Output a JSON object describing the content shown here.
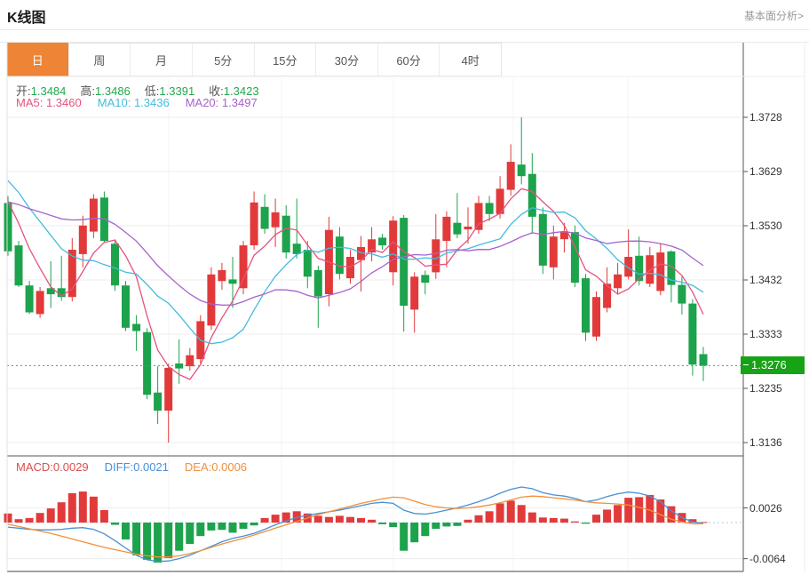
{
  "header": {
    "title": "K线图",
    "link": "基本面分析>"
  },
  "tabs": {
    "items": [
      "日",
      "周",
      "月",
      "5分",
      "15分",
      "30分",
      "60分",
      "4时"
    ],
    "active": "日"
  },
  "legend": {
    "ohlc": [
      {
        "label": "开:",
        "value": "1.3484"
      },
      {
        "label": "高:",
        "value": "1.3486"
      },
      {
        "label": "低:",
        "value": "1.3391"
      },
      {
        "label": "收:",
        "value": "1.3423"
      }
    ],
    "ma": [
      {
        "label": "MA5:",
        "value": "1.3460"
      },
      {
        "label": "MA10:",
        "value": "1.3436"
      },
      {
        "label": "MA20:",
        "value": "1.3497"
      }
    ]
  },
  "macd_legend": [
    {
      "label": "MACD:",
      "value": "0.0029"
    },
    {
      "label": "DIFF:",
      "value": "0.0021"
    },
    {
      "label": "DEA:",
      "value": "0.0006"
    }
  ],
  "price_tag": "1.3276",
  "colors": {
    "up": "#e23a3a",
    "down": "#1ca34c",
    "ma5": "#e8517e",
    "ma10": "#44bbdd",
    "ma20": "#a763ca",
    "diff": "#4a90d6",
    "dea": "#f0913c",
    "tab_active": "#ee8435",
    "price_tag_bg": "#16a316",
    "ohlc_value_green": "#21a94c",
    "price_line": "#2fae4e"
  },
  "chart_data": [
    {
      "type": "candlestick",
      "title": "日K主图",
      "ylabel": "price",
      "grid": true,
      "legend_position": "top-left",
      "y_ticks": [
        "1.3728",
        "1.3629",
        "1.3530",
        "1.3432",
        "1.3333",
        "1.3235",
        "1.3136"
      ],
      "current_price": 1.3276,
      "ma_periods": [
        5,
        10,
        20
      ],
      "ma_seed_closes": [
        1.352,
        1.3522,
        1.3525,
        1.3528,
        1.353,
        1.3528,
        1.3525,
        1.3522,
        1.3525,
        1.353,
        1.3618,
        1.364,
        1.3655,
        1.366,
        1.3655,
        1.3645,
        1.362,
        1.3605,
        1.359,
        1.3575
      ],
      "candles_format": [
        "open",
        "high",
        "low",
        "close"
      ],
      "candles": [
        [
          1.3572,
          1.3585,
          1.3476,
          1.3484
        ],
        [
          1.3495,
          1.3503,
          1.3419,
          1.3422
        ],
        [
          1.3422,
          1.343,
          1.337,
          1.3373
        ],
        [
          1.337,
          1.3419,
          1.3363,
          1.3412
        ],
        [
          1.3417,
          1.3466,
          1.3381,
          1.3406
        ],
        [
          1.3417,
          1.3476,
          1.3394,
          1.3401
        ],
        [
          1.3401,
          1.3508,
          1.3393,
          1.3487
        ],
        [
          1.3479,
          1.3549,
          1.3455,
          1.3531
        ],
        [
          1.352,
          1.3588,
          1.3508,
          1.358
        ],
        [
          1.3582,
          1.3593,
          1.35,
          1.3503
        ],
        [
          1.3498,
          1.3506,
          1.3412,
          1.3422
        ],
        [
          1.3422,
          1.343,
          1.3339,
          1.3345
        ],
        [
          1.3352,
          1.3368,
          1.3303,
          1.3339
        ],
        [
          1.3337,
          1.3344,
          1.3215,
          1.3223
        ],
        [
          1.3227,
          1.3275,
          1.317,
          1.3194
        ],
        [
          1.3194,
          1.328,
          1.3136,
          1.3272
        ],
        [
          1.328,
          1.3324,
          1.3243,
          1.3271
        ],
        [
          1.3275,
          1.3308,
          1.3267,
          1.3295
        ],
        [
          1.3288,
          1.3368,
          1.3279,
          1.3357
        ],
        [
          1.3349,
          1.3455,
          1.3341,
          1.3442
        ],
        [
          1.343,
          1.3463,
          1.3414,
          1.345
        ],
        [
          1.3433,
          1.3474,
          1.3381,
          1.3425
        ],
        [
          1.3417,
          1.3503,
          1.3406,
          1.3495
        ],
        [
          1.3495,
          1.3593,
          1.3487,
          1.3573
        ],
        [
          1.3565,
          1.3588,
          1.3516,
          1.3525
        ],
        [
          1.3528,
          1.358,
          1.3492,
          1.3555
        ],
        [
          1.3549,
          1.3568,
          1.3471,
          1.3482
        ],
        [
          1.3498,
          1.358,
          1.3471,
          1.3479
        ],
        [
          1.3487,
          1.3503,
          1.3417,
          1.3438
        ],
        [
          1.345,
          1.3458,
          1.3345,
          1.3402
        ],
        [
          1.3406,
          1.3547,
          1.3384,
          1.3523
        ],
        [
          1.3511,
          1.3528,
          1.3433,
          1.3443
        ],
        [
          1.3435,
          1.3487,
          1.3425,
          1.3474
        ],
        [
          1.3468,
          1.3512,
          1.3411,
          1.3492
        ],
        [
          1.3482,
          1.3528,
          1.3466,
          1.3506
        ],
        [
          1.3509,
          1.3516,
          1.3487,
          1.3495
        ],
        [
          1.3446,
          1.3548,
          1.3422,
          1.354
        ],
        [
          1.3545,
          1.355,
          1.3338,
          1.3385
        ],
        [
          1.3378,
          1.3446,
          1.3336,
          1.3438
        ],
        [
          1.3441,
          1.3449,
          1.3406,
          1.3427
        ],
        [
          1.3446,
          1.3552,
          1.3434,
          1.3506
        ],
        [
          1.3503,
          1.3557,
          1.3455,
          1.3547
        ],
        [
          1.3536,
          1.359,
          1.3508,
          1.3515
        ],
        [
          1.3524,
          1.3564,
          1.3498,
          1.3529
        ],
        [
          1.3523,
          1.3585,
          1.3516,
          1.3572
        ],
        [
          1.3572,
          1.3585,
          1.3539,
          1.3552
        ],
        [
          1.3552,
          1.3621,
          1.3544,
          1.3598
        ],
        [
          1.3596,
          1.3679,
          1.3585,
          1.3647
        ],
        [
          1.3642,
          1.3728,
          1.3606,
          1.3621
        ],
        [
          1.3625,
          1.3663,
          1.3516,
          1.3547
        ],
        [
          1.3552,
          1.3564,
          1.3443,
          1.3458
        ],
        [
          1.3455,
          1.3531,
          1.3433,
          1.3511
        ],
        [
          1.3506,
          1.3536,
          1.3482,
          1.3519
        ],
        [
          1.3519,
          1.3531,
          1.3419,
          1.3427
        ],
        [
          1.3435,
          1.3443,
          1.3321,
          1.3336
        ],
        [
          1.3329,
          1.3411,
          1.3321,
          1.3401
        ],
        [
          1.3381,
          1.3455,
          1.3373,
          1.3425
        ],
        [
          1.3417,
          1.3463,
          1.3406,
          1.3442
        ],
        [
          1.3438,
          1.3524,
          1.3433,
          1.3474
        ],
        [
          1.3476,
          1.3511,
          1.3422,
          1.343
        ],
        [
          1.3425,
          1.3492,
          1.3419,
          1.3477
        ],
        [
          1.3412,
          1.3498,
          1.3404,
          1.3482
        ],
        [
          1.3484,
          1.3486,
          1.3391,
          1.3423
        ],
        [
          1.3423,
          1.3438,
          1.3369,
          1.3389
        ],
        [
          1.3389,
          1.3397,
          1.3258,
          1.3278
        ],
        [
          1.3297,
          1.331,
          1.3248,
          1.3276
        ]
      ]
    },
    {
      "type": "bar",
      "title": "MACD副图",
      "y_ticks": [
        "0.0026",
        "-0.0064"
      ],
      "zero_line": 0,
      "hist": [
        0.0016,
        0.0006,
        0.0008,
        0.0017,
        0.0025,
        0.0036,
        0.0052,
        0.0055,
        0.0046,
        0.0022,
        -0.0004,
        -0.003,
        -0.0058,
        -0.0066,
        -0.0071,
        -0.0063,
        -0.005,
        -0.0038,
        -0.0024,
        -0.0014,
        -0.0013,
        -0.0018,
        -0.0011,
        -0.0005,
        0.0008,
        0.0014,
        0.0018,
        0.002,
        0.0016,
        0.0012,
        0.001,
        0.0012,
        0.001,
        0.0008,
        0.0005,
        -0.0003,
        -0.0008,
        -0.005,
        -0.0035,
        -0.0024,
        -0.0011,
        -0.0007,
        -0.0006,
        0.0005,
        0.0013,
        0.002,
        0.0034,
        0.0039,
        0.0031,
        0.0018,
        0.0009,
        0.0008,
        0.0007,
        0.0002,
        -0.0002,
        0.0014,
        0.0023,
        0.0031,
        0.0044,
        0.0045,
        0.0049,
        0.0041,
        0.0029,
        0.0017,
        0.0006,
        0.0001
      ],
      "diff": [
        -0.0008,
        -0.001,
        -0.0012,
        -0.0013,
        -0.0013,
        -0.0012,
        -0.001,
        -0.0009,
        -0.0012,
        -0.002,
        -0.0032,
        -0.0045,
        -0.0058,
        -0.0066,
        -0.0069,
        -0.0068,
        -0.0064,
        -0.0058,
        -0.005,
        -0.0042,
        -0.0034,
        -0.0028,
        -0.0024,
        -0.0019,
        -0.0012,
        -0.0004,
        0.0003,
        0.0009,
        0.0013,
        0.0016,
        0.0019,
        0.0022,
        0.0026,
        0.003,
        0.0034,
        0.0036,
        0.0034,
        0.0022,
        0.0016,
        0.0015,
        0.0018,
        0.0022,
        0.0026,
        0.0031,
        0.0037,
        0.0044,
        0.0052,
        0.0059,
        0.0063,
        0.006,
        0.0053,
        0.0049,
        0.0047,
        0.0043,
        0.0037,
        0.004,
        0.0046,
        0.0051,
        0.0054,
        0.0052,
        0.0047,
        0.0037,
        0.0021,
        0.0009,
        0.0001,
        -0.0001
      ],
      "dea": [
        -0.0003,
        -0.0007,
        -0.0011,
        -0.0015,
        -0.0019,
        -0.0024,
        -0.0029,
        -0.0034,
        -0.0039,
        -0.0044,
        -0.0048,
        -0.0052,
        -0.0056,
        -0.0059,
        -0.0061,
        -0.0061,
        -0.0059,
        -0.0055,
        -0.005,
        -0.0044,
        -0.0038,
        -0.0033,
        -0.0028,
        -0.0022,
        -0.0016,
        -0.001,
        -0.0004,
        0.0002,
        0.0008,
        0.0014,
        0.0019,
        0.0024,
        0.0029,
        0.0034,
        0.0038,
        0.0042,
        0.0045,
        0.0044,
        0.0038,
        0.0032,
        0.0028,
        0.0026,
        0.0025,
        0.0026,
        0.0028,
        0.0031,
        0.0035,
        0.004,
        0.0045,
        0.0047,
        0.0046,
        0.0044,
        0.0042,
        0.004,
        0.0037,
        0.0035,
        0.0034,
        0.0033,
        0.0031,
        0.0027,
        0.0022,
        0.0014,
        0.0006,
        0.0001,
        -0.0002,
        -0.0002
      ]
    }
  ]
}
